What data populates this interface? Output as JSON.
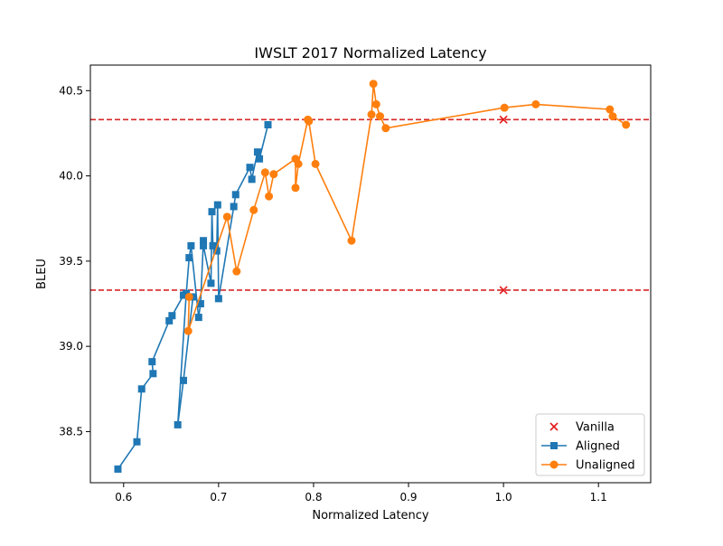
{
  "chart_data": {
    "type": "line",
    "title": "IWSLT 2017 Normalized Latency",
    "xlabel": "Normalized Latency",
    "ylabel": "BLEU",
    "xlim": [
      0.565,
      1.155
    ],
    "ylim": [
      38.2,
      40.65
    ],
    "xticks": [
      0.6,
      0.7,
      0.8,
      0.9,
      1.0,
      1.1
    ],
    "yticks": [
      38.5,
      39.0,
      39.5,
      40.0,
      40.5
    ],
    "grid": false,
    "legend_position": "lower-right",
    "reference_lines": [
      {
        "y": 40.33,
        "color": "#d62728",
        "style": "dashed"
      },
      {
        "y": 39.33,
        "color": "#d62728",
        "style": "dashed"
      }
    ],
    "series": [
      {
        "name": "Vanilla",
        "kind": "scatter",
        "marker": "x",
        "color": "#e41a1c",
        "points": [
          [
            1.0,
            40.33
          ],
          [
            1.0,
            39.33
          ]
        ]
      },
      {
        "name": "Aligned",
        "kind": "line",
        "marker": "square",
        "color": "#1f77b4",
        "points": [
          [
            0.594,
            38.28
          ],
          [
            0.614,
            38.44
          ],
          [
            0.619,
            38.75
          ],
          [
            0.631,
            38.84
          ],
          [
            0.63,
            38.91
          ],
          [
            0.648,
            39.15
          ],
          [
            0.651,
            39.18
          ],
          [
            0.663,
            39.3
          ],
          [
            0.673,
            39.29
          ],
          [
            0.663,
            38.8
          ],
          [
            0.657,
            38.54
          ],
          [
            0.666,
            39.31
          ],
          [
            0.669,
            39.52
          ],
          [
            0.671,
            39.59
          ],
          [
            0.679,
            39.17
          ],
          [
            0.681,
            39.25
          ],
          [
            0.684,
            39.62
          ],
          [
            0.684,
            39.59
          ],
          [
            0.692,
            39.37
          ],
          [
            0.693,
            39.79
          ],
          [
            0.694,
            39.59
          ],
          [
            0.698,
            39.56
          ],
          [
            0.699,
            39.83
          ],
          [
            0.7,
            39.28
          ],
          [
            0.716,
            39.82
          ],
          [
            0.718,
            39.89
          ],
          [
            0.733,
            40.05
          ],
          [
            0.735,
            39.98
          ],
          [
            0.741,
            40.14
          ],
          [
            0.743,
            40.1
          ],
          [
            0.752,
            40.3
          ]
        ]
      },
      {
        "name": "Unaligned",
        "kind": "line",
        "marker": "circle",
        "color": "#ff7f0e",
        "points": [
          [
            0.669,
            39.29
          ],
          [
            0.668,
            39.09
          ],
          [
            0.709,
            39.76
          ],
          [
            0.719,
            39.44
          ],
          [
            0.737,
            39.8
          ],
          [
            0.749,
            40.02
          ],
          [
            0.753,
            39.88
          ],
          [
            0.758,
            40.01
          ],
          [
            0.781,
            40.1
          ],
          [
            0.781,
            39.93
          ],
          [
            0.784,
            40.07
          ],
          [
            0.794,
            40.33
          ],
          [
            0.795,
            40.32
          ],
          [
            0.802,
            40.07
          ],
          [
            0.84,
            39.62
          ],
          [
            0.861,
            40.36
          ],
          [
            0.863,
            40.54
          ],
          [
            0.866,
            40.42
          ],
          [
            0.87,
            40.35
          ],
          [
            0.876,
            40.28
          ],
          [
            1.001,
            40.4
          ],
          [
            1.034,
            40.42
          ],
          [
            1.112,
            40.39
          ],
          [
            1.115,
            40.35
          ],
          [
            1.129,
            40.3
          ]
        ]
      }
    ]
  }
}
